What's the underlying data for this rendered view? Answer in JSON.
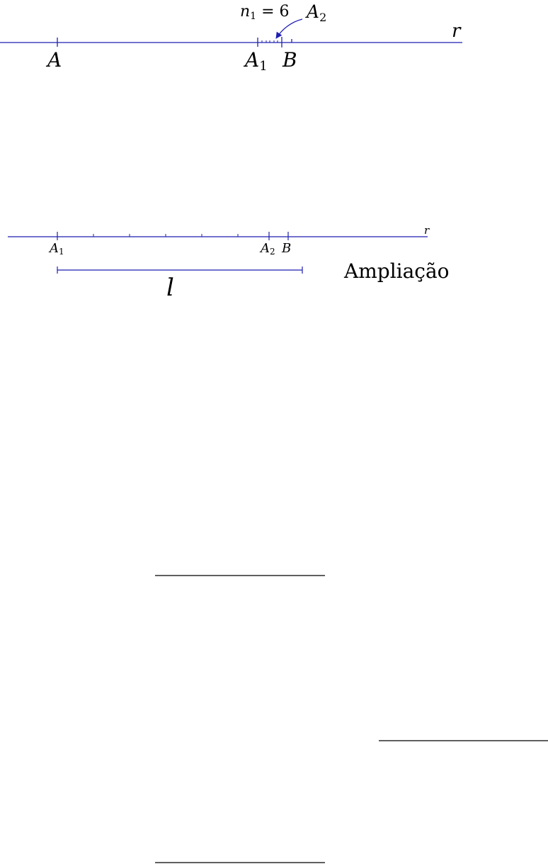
{
  "colors": {
    "line": "#1f1fb0",
    "text": "#000000",
    "rule": "#000000"
  },
  "figure_top": {
    "line_label": "r",
    "points": {
      "A": {
        "main": "A",
        "sub": ""
      },
      "A1": {
        "main": "A",
        "sub": "1"
      },
      "B": {
        "main": "B",
        "sub": ""
      }
    },
    "callout": {
      "n_main": "n",
      "n_sub": "1",
      "n_rest": " = 6",
      "point_main": "A",
      "point_sub": "2"
    }
  },
  "figure_zoom": {
    "line_label": "r",
    "points": {
      "A1": {
        "main": "A",
        "sub": "1"
      },
      "A2": {
        "main": "A",
        "sub": "2"
      },
      "B": {
        "main": "B",
        "sub": ""
      }
    },
    "segment_label": "l",
    "caption": "Ampliação"
  }
}
